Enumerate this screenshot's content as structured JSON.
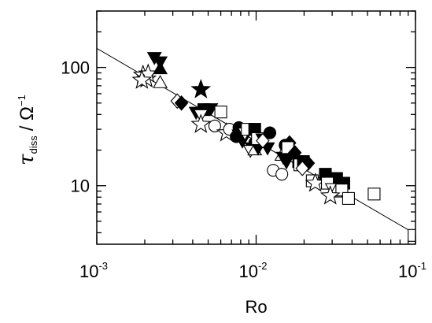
{
  "chart_data": {
    "type": "scatter",
    "title": "",
    "xlabel": "Ro",
    "ylabel": {
      "symbol": "τ",
      "subscript": "diss",
      "rest": "/ Ω",
      "exponent": "−1"
    },
    "xscale": "log",
    "yscale": "log",
    "xlim": [
      0.001,
      0.1
    ],
    "ylim": [
      3.2,
      300
    ],
    "grid": false,
    "legend": "none",
    "x_ticks": [
      {
        "value": 0.001,
        "base": "10",
        "exp": "-3"
      },
      {
        "value": 0.01,
        "base": "10",
        "exp": "-2"
      },
      {
        "value": 0.1,
        "base": "10",
        "exp": "-1"
      }
    ],
    "y_ticks": [
      {
        "value": 10,
        "label": "10"
      },
      {
        "value": 100,
        "label": "100"
      }
    ],
    "fit_line": {
      "x": [
        0.001,
        0.1
      ],
      "y": [
        145,
        3.9
      ]
    },
    "points": [
      {
        "marker": "star",
        "filled": false,
        "x": 0.00195,
        "y": 86
      },
      {
        "marker": "star",
        "filled": false,
        "x": 0.00205,
        "y": 80
      },
      {
        "marker": "star",
        "filled": false,
        "x": 0.0021,
        "y": 88
      },
      {
        "marker": "star",
        "filled": false,
        "x": 0.00192,
        "y": 78
      },
      {
        "marker": "triangle-down",
        "filled": true,
        "x": 0.0023,
        "y": 122
      },
      {
        "marker": "triangle-down",
        "filled": true,
        "x": 0.0025,
        "y": 112
      },
      {
        "marker": "triangle-up",
        "filled": true,
        "x": 0.0025,
        "y": 97
      },
      {
        "marker": "triangle-up",
        "filled": false,
        "x": 0.0025,
        "y": 74
      },
      {
        "marker": "diamond",
        "filled": false,
        "x": 0.0032,
        "y": 52
      },
      {
        "marker": "diamond",
        "filled": true,
        "x": 0.0034,
        "y": 50
      },
      {
        "marker": "star",
        "filled": true,
        "x": 0.0045,
        "y": 65
      },
      {
        "marker": "triangle-down",
        "filled": true,
        "x": 0.0042,
        "y": 42
      },
      {
        "marker": "square",
        "filled": true,
        "x": 0.0047,
        "y": 44
      },
      {
        "marker": "triangle-down",
        "filled": true,
        "x": 0.0052,
        "y": 45
      },
      {
        "marker": "triangle-down",
        "filled": false,
        "x": 0.0045,
        "y": 40
      },
      {
        "marker": "square",
        "filled": false,
        "x": 0.006,
        "y": 42
      },
      {
        "marker": "star",
        "filled": false,
        "x": 0.0045,
        "y": 33
      },
      {
        "marker": "circle",
        "filled": false,
        "x": 0.0055,
        "y": 32
      },
      {
        "marker": "star",
        "filled": false,
        "x": 0.0065,
        "y": 28
      },
      {
        "marker": "circle",
        "filled": false,
        "x": 0.0068,
        "y": 30
      },
      {
        "marker": "triangle-down",
        "filled": true,
        "x": 0.0078,
        "y": 27
      },
      {
        "marker": "circle",
        "filled": true,
        "x": 0.0078,
        "y": 31
      },
      {
        "marker": "circle",
        "filled": true,
        "x": 0.0075,
        "y": 26
      },
      {
        "marker": "triangle-down",
        "filled": true,
        "x": 0.0082,
        "y": 24
      },
      {
        "marker": "triangle-down",
        "filled": false,
        "x": 0.0085,
        "y": 28
      },
      {
        "marker": "square",
        "filled": false,
        "x": 0.0088,
        "y": 30
      },
      {
        "marker": "square",
        "filled": true,
        "x": 0.0098,
        "y": 30
      },
      {
        "marker": "triangle-down",
        "filled": true,
        "x": 0.0094,
        "y": 21
      },
      {
        "marker": "circle",
        "filled": true,
        "x": 0.0098,
        "y": 23
      },
      {
        "marker": "triangle-down",
        "filled": false,
        "x": 0.0092,
        "y": 20
      },
      {
        "marker": "triangle-up",
        "filled": false,
        "x": 0.0098,
        "y": 20
      },
      {
        "marker": "triangle-down",
        "filled": true,
        "x": 0.0103,
        "y": 21
      },
      {
        "marker": "square",
        "filled": false,
        "x": 0.0102,
        "y": 25
      },
      {
        "marker": "triangle-down",
        "filled": true,
        "x": 0.011,
        "y": 25
      },
      {
        "marker": "circle",
        "filled": true,
        "x": 0.0122,
        "y": 28
      },
      {
        "marker": "triangle-down",
        "filled": true,
        "x": 0.0118,
        "y": 21
      },
      {
        "marker": "diamond",
        "filled": false,
        "x": 0.011,
        "y": 24
      },
      {
        "marker": "circle",
        "filled": false,
        "x": 0.0128,
        "y": 13.5
      },
      {
        "marker": "circle",
        "filled": false,
        "x": 0.0145,
        "y": 12.5
      },
      {
        "marker": "triangle-up",
        "filled": false,
        "x": 0.0145,
        "y": 18
      },
      {
        "marker": "diamond",
        "filled": true,
        "x": 0.0162,
        "y": 23
      },
      {
        "marker": "circle",
        "filled": true,
        "x": 0.0152,
        "y": 22
      },
      {
        "marker": "triangle-down",
        "filled": true,
        "x": 0.0148,
        "y": 17.5
      },
      {
        "marker": "circle",
        "filled": true,
        "x": 0.0158,
        "y": 19
      },
      {
        "marker": "triangle-down",
        "filled": true,
        "x": 0.0155,
        "y": 16
      },
      {
        "marker": "square",
        "filled": false,
        "x": 0.0158,
        "y": 21
      },
      {
        "marker": "diamond",
        "filled": true,
        "x": 0.0175,
        "y": 19
      },
      {
        "marker": "square",
        "filled": true,
        "x": 0.0185,
        "y": 16
      },
      {
        "marker": "square",
        "filled": false,
        "x": 0.0188,
        "y": 15
      },
      {
        "marker": "square",
        "filled": true,
        "x": 0.0198,
        "y": 16
      },
      {
        "marker": "diamond",
        "filled": true,
        "x": 0.0212,
        "y": 15.5
      },
      {
        "marker": "diamond",
        "filled": false,
        "x": 0.0195,
        "y": 14
      },
      {
        "marker": "square",
        "filled": false,
        "x": 0.0225,
        "y": 11
      },
      {
        "marker": "star",
        "filled": false,
        "x": 0.0235,
        "y": 10.5
      },
      {
        "marker": "square",
        "filled": true,
        "x": 0.0272,
        "y": 12.5
      },
      {
        "marker": "square",
        "filled": true,
        "x": 0.029,
        "y": 11.5
      },
      {
        "marker": "square",
        "filled": true,
        "x": 0.032,
        "y": 11.5
      },
      {
        "marker": "square",
        "filled": false,
        "x": 0.028,
        "y": 10.5
      },
      {
        "marker": "triangle-down",
        "filled": false,
        "x": 0.03,
        "y": 9.5
      },
      {
        "marker": "triangle-up",
        "filled": false,
        "x": 0.0315,
        "y": 8.8
      },
      {
        "marker": "square",
        "filled": true,
        "x": 0.0355,
        "y": 10.5
      },
      {
        "marker": "square",
        "filled": false,
        "x": 0.0345,
        "y": 9.2
      },
      {
        "marker": "star",
        "filled": false,
        "x": 0.0292,
        "y": 8.2
      },
      {
        "marker": "square",
        "filled": false,
        "x": 0.038,
        "y": 7.8
      },
      {
        "marker": "square",
        "filled": false,
        "x": 0.055,
        "y": 8.5
      },
      {
        "marker": "square",
        "filled": false,
        "x": 0.098,
        "y": 3.8
      }
    ]
  }
}
